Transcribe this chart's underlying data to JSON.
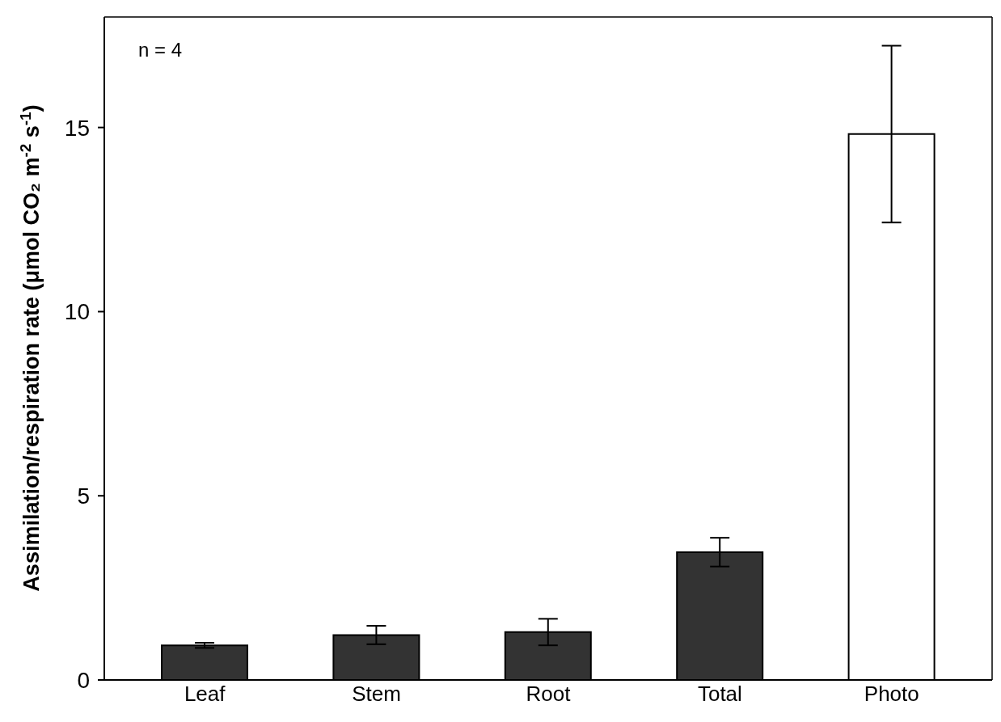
{
  "chart_data": {
    "type": "bar",
    "ylabel": "Assimilation/respiration rate (μmol CO₂ m$^{-2}$ s$^{-1}$)",
    "categories": [
      "Leaf",
      "Stem",
      "Root",
      "Total",
      "Photo"
    ],
    "values": [
      0.94,
      1.22,
      1.3,
      3.47,
      14.82
    ],
    "errors": [
      0.07,
      0.25,
      0.36,
      0.39,
      2.4
    ],
    "colors": [
      "#333333",
      "#333333",
      "#333333",
      "#333333",
      "#ffffff"
    ],
    "ylim": [
      0,
      18
    ],
    "yticks": [
      0,
      5,
      10,
      15
    ],
    "annotations": [
      "n = 4"
    ],
    "grid": false,
    "legend": false
  }
}
